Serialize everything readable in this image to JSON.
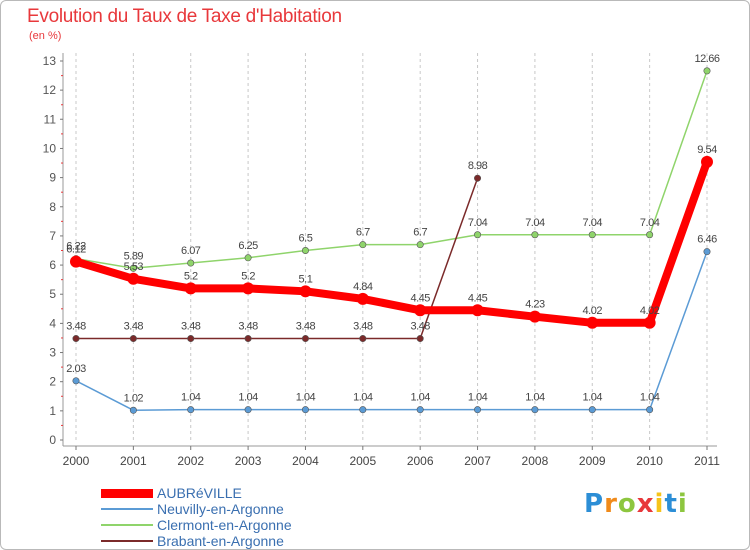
{
  "header": {
    "title": "Evolution du Taux de Taxe d'Habitation",
    "subtitle": "(en %)"
  },
  "logo": {
    "text": "Proxiti",
    "colors": [
      "#2c8ed6",
      "#f08a1a",
      "#8dc63f",
      "#e8383b",
      "#f6c31a",
      "#2c8ed6",
      "#8dc63f"
    ]
  },
  "chart_data": {
    "type": "line",
    "x": [
      2000,
      2001,
      2002,
      2003,
      2004,
      2005,
      2006,
      2007,
      2008,
      2009,
      2010,
      2011
    ],
    "ylim": [
      0,
      13
    ],
    "yticks": [
      0,
      1,
      2,
      3,
      4,
      5,
      6,
      7,
      8,
      9,
      10,
      11,
      12,
      13
    ],
    "grid": "vertical dashed",
    "legend": "bottom-left",
    "series": [
      {
        "name": "AUBRéVILLE",
        "color": "#ff0000",
        "style": "thick",
        "values": [
          6.12,
          5.53,
          5.2,
          5.2,
          5.1,
          4.84,
          4.45,
          4.45,
          4.23,
          4.02,
          4.02,
          9.54
        ],
        "labels": [
          "6.12",
          "5.53",
          "5.2",
          "5.2",
          "5.1",
          "4.84",
          "4.45",
          "4.45",
          "4.23",
          "4.02",
          "4.02",
          "9.54"
        ]
      },
      {
        "name": "Neuvilly-en-Argonne",
        "color": "#5b9bd5",
        "style": "thin",
        "values": [
          2.03,
          1.02,
          1.04,
          1.04,
          1.04,
          1.04,
          1.04,
          1.04,
          1.04,
          1.04,
          1.04,
          6.46
        ],
        "labels": [
          "2.03",
          "1.02",
          "1.04",
          "1.04",
          "1.04",
          "1.04",
          "1.04",
          "1.04",
          "1.04",
          "1.04",
          "1.04",
          "6.46"
        ]
      },
      {
        "name": "Clermont-en-Argonne",
        "color": "#8fd46b",
        "style": "thin",
        "values": [
          6.22,
          5.89,
          6.07,
          6.25,
          6.5,
          6.7,
          6.7,
          7.04,
          7.04,
          7.04,
          7.04,
          12.66
        ],
        "labels": [
          "6.22",
          "5.89",
          "6.07",
          "6.25",
          "6.5",
          "6.7",
          "6.7",
          "7.04",
          "7.04",
          "7.04",
          "7.04",
          "12.66"
        ]
      },
      {
        "name": "Brabant-en-Argonne",
        "color": "#7b2a2a",
        "style": "thin",
        "values": [
          3.48,
          3.48,
          3.48,
          3.48,
          3.48,
          3.48,
          3.48,
          8.98,
          null,
          null,
          null,
          null
        ],
        "labels": [
          "3.48",
          "3.48",
          "3.48",
          "3.48",
          "3.48",
          "3.48",
          "3.48",
          "8.98",
          "",
          "",
          "",
          ""
        ]
      }
    ]
  }
}
